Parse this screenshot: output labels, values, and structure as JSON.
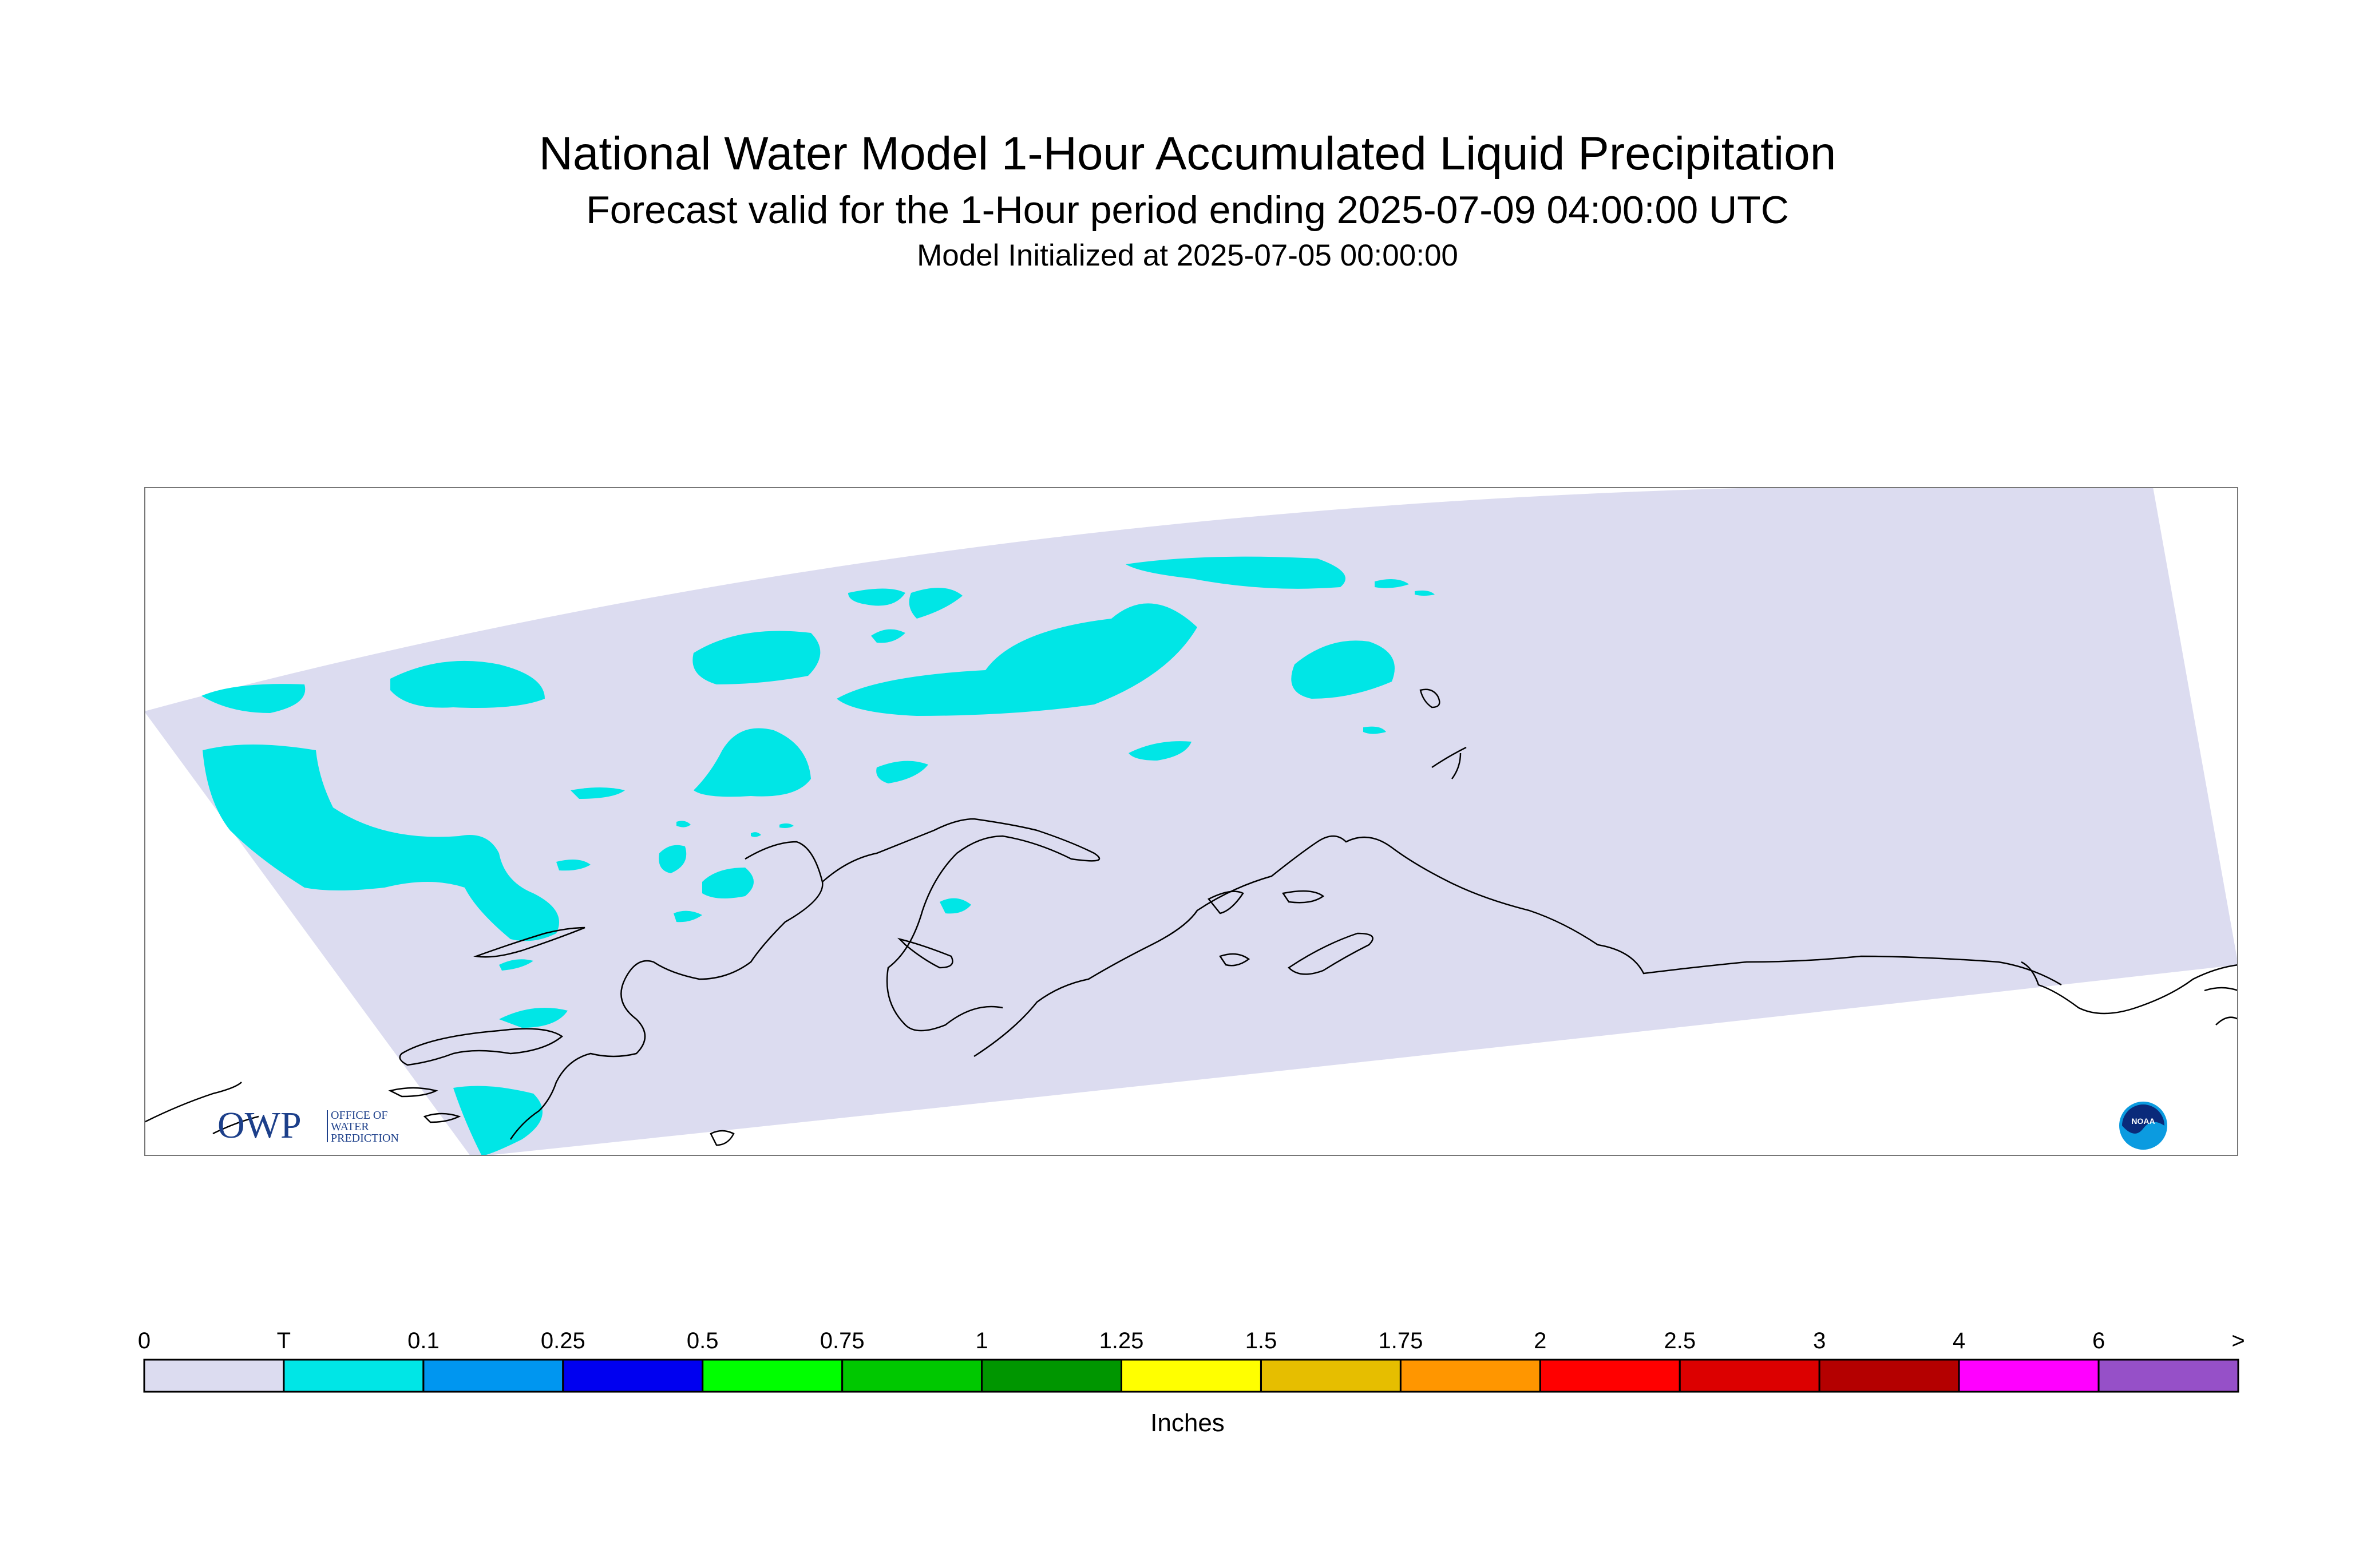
{
  "header": {
    "title": "National Water Model 1-Hour Accumulated Liquid Precipitation",
    "subtitle": "Forecast valid for the 1-Hour period ending 2025-07-09 04:00:00 UTC",
    "init": "Model Initialized at 2025-07-05 00:00:00"
  },
  "map": {
    "domain_color": "#dcdcf0",
    "precip_color": "#00e6e6",
    "coast_color": "#000000"
  },
  "legend": {
    "units": "Inches",
    "labels": [
      "0",
      "T",
      "0.1",
      "0.25",
      "0.5",
      "0.75",
      "1",
      "1.25",
      "1.5",
      "1.75",
      "2",
      "2.5",
      "3",
      "4",
      "6",
      ">"
    ],
    "colors": [
      "#dcdcf0",
      "#00e6e6",
      "#0096f0",
      "#0000f0",
      "#00ff00",
      "#00c800",
      "#009600",
      "#ffff00",
      "#e6be00",
      "#ff9600",
      "#ff0000",
      "#dc0000",
      "#b40000",
      "#ff00ff",
      "#9650c8"
    ]
  },
  "logos": {
    "owp_mark": "OWP",
    "owp_text": [
      "OFFICE OF",
      "WATER",
      "PREDICTION"
    ],
    "noaa_icon": "noaa-logo-icon",
    "noaa_text": "NOAA"
  }
}
